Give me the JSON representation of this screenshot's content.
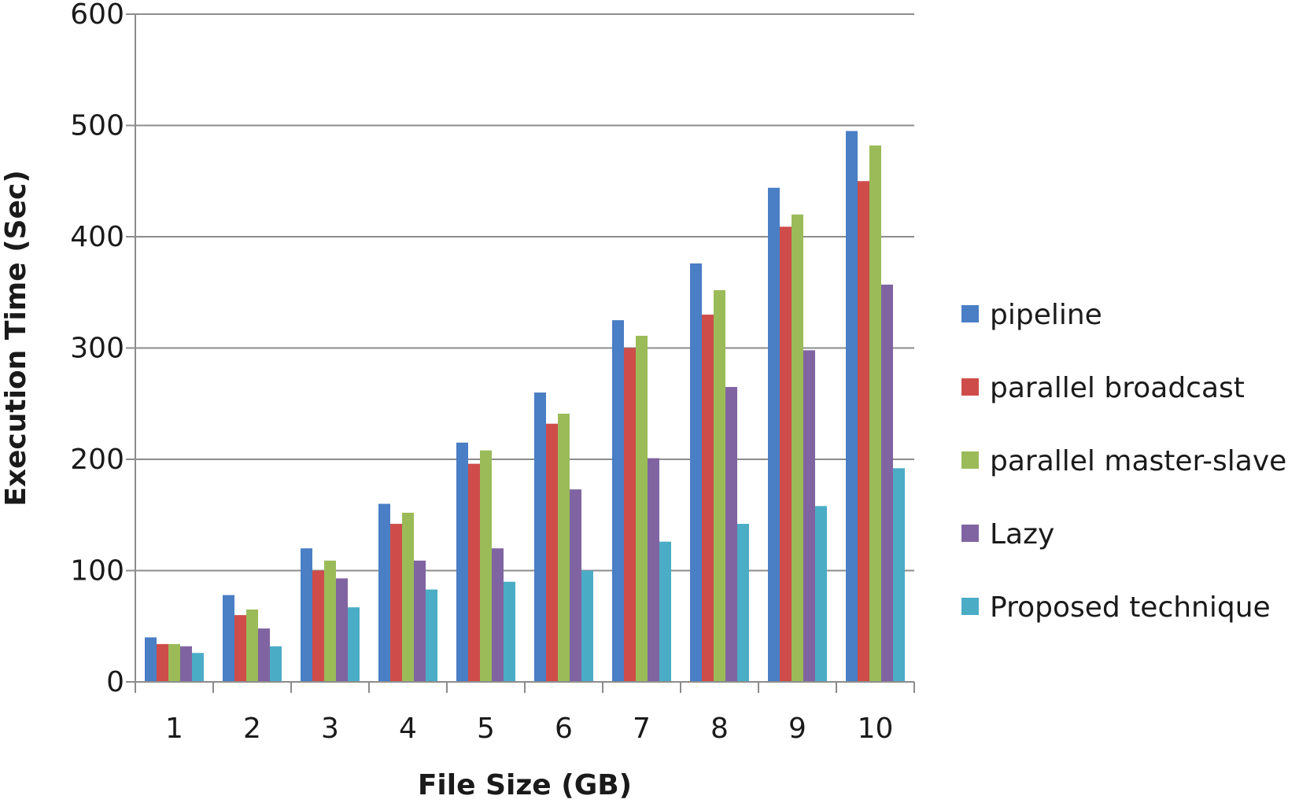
{
  "chart_data": {
    "type": "bar",
    "title": "",
    "xlabel": "File Size (GB)",
    "ylabel": "Execution Time (Sec)",
    "ylim": [
      0,
      600
    ],
    "yticks": [
      "0",
      "100",
      "200",
      "300",
      "400",
      "500",
      "600"
    ],
    "grid": true,
    "legend_position": "right",
    "categories": [
      "1",
      "2",
      "3",
      "4",
      "5",
      "6",
      "7",
      "8",
      "9",
      "10"
    ],
    "series": [
      {
        "name": "pipeline",
        "color": "#4a7ec5",
        "values": [
          40,
          78,
          120,
          160,
          215,
          260,
          325,
          376,
          444,
          495
        ]
      },
      {
        "name": "parallel broadcast",
        "color": "#ce4d4a",
        "values": [
          34,
          60,
          100,
          142,
          196,
          232,
          300,
          330,
          409,
          450
        ]
      },
      {
        "name": "parallel master-slave",
        "color": "#9bbb59",
        "values": [
          34,
          65,
          109,
          152,
          208,
          241,
          311,
          352,
          420,
          482
        ]
      },
      {
        "name": "Lazy",
        "color": "#8064a2",
        "values": [
          32,
          48,
          93,
          109,
          120,
          173,
          201,
          265,
          298,
          357
        ]
      },
      {
        "name": "Proposed technique",
        "color": "#4bacc6",
        "values": [
          26,
          32,
          67,
          83,
          90,
          100,
          126,
          142,
          158,
          192
        ]
      }
    ]
  }
}
